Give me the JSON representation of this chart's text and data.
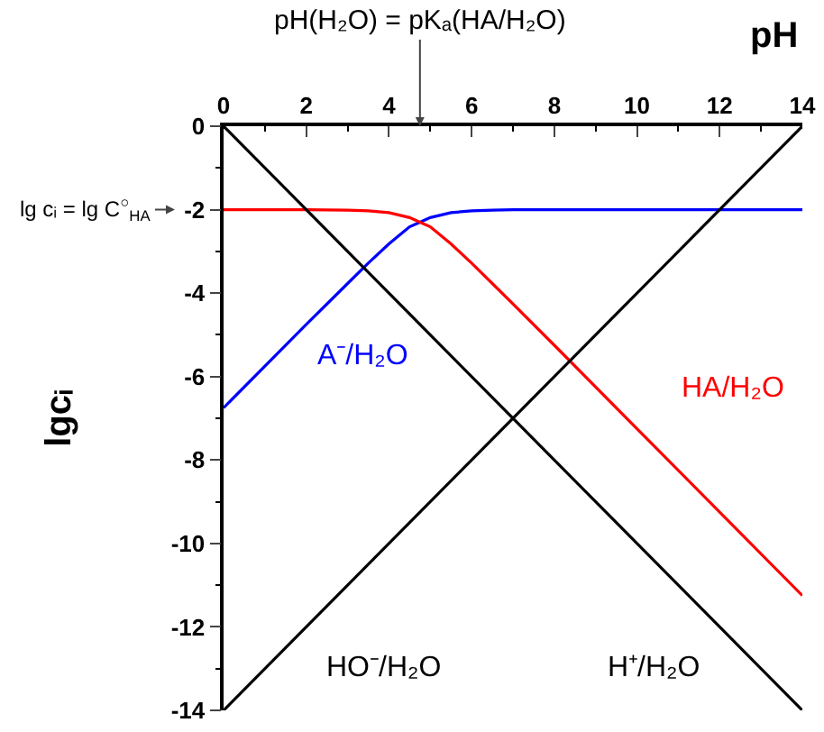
{
  "chart_data": {
    "type": "line",
    "xlabel": "pH",
    "ylabel": "lgcᵢ",
    "xlim": [
      0,
      14
    ],
    "xticks": [
      0,
      2,
      4,
      6,
      8,
      10,
      12,
      14
    ],
    "ylim": [
      -14,
      0
    ],
    "yticks": [
      0,
      -2,
      -4,
      -6,
      -8,
      -10,
      -12,
      -14
    ],
    "grid": false,
    "legend": false,
    "marker": "none",
    "line_style": "solid",
    "series": [
      {
        "name": "A⁻/H₂O",
        "color": "#0000ff",
        "x": [
          0,
          1,
          2,
          3,
          3.5,
          4,
          4.5,
          4.75,
          5,
          5.5,
          6,
          6.5,
          7,
          8,
          14
        ],
        "values": [
          -6.75,
          -5.75,
          -4.75,
          -3.77,
          -3.28,
          -2.82,
          -2.41,
          -2.3,
          -2.19,
          -2.07,
          -2.03,
          -2.01,
          -2.0,
          -2.0,
          -2.0
        ]
      },
      {
        "name": "HA/H₂O",
        "color": "#ff0000",
        "x": [
          0,
          2,
          3,
          3.5,
          4,
          4.5,
          4.75,
          5,
          5.5,
          6,
          6.5,
          7,
          8,
          10,
          14
        ],
        "values": [
          -2.0,
          -2.0,
          -2.01,
          -2.03,
          -2.07,
          -2.19,
          -2.3,
          -2.41,
          -2.82,
          -3.28,
          -3.77,
          -4.26,
          -5.25,
          -7.25,
          -11.25
        ]
      },
      {
        "name": "HO⁻/H₂O",
        "color": "#000000",
        "x": [
          0,
          14
        ],
        "values": [
          -14,
          0
        ]
      },
      {
        "name": "H⁺/H₂O",
        "color": "#000000",
        "x": [
          0,
          14
        ],
        "values": [
          0,
          -14
        ]
      }
    ],
    "annotations": [
      "pH(H₂O) = pKₐ(HA/H₂O)",
      {
        "text": "lg cᵢ = lg C$^{○}$$_{HA}$",
        "x": 0,
        "y": -2
      }
    ]
  }
}
